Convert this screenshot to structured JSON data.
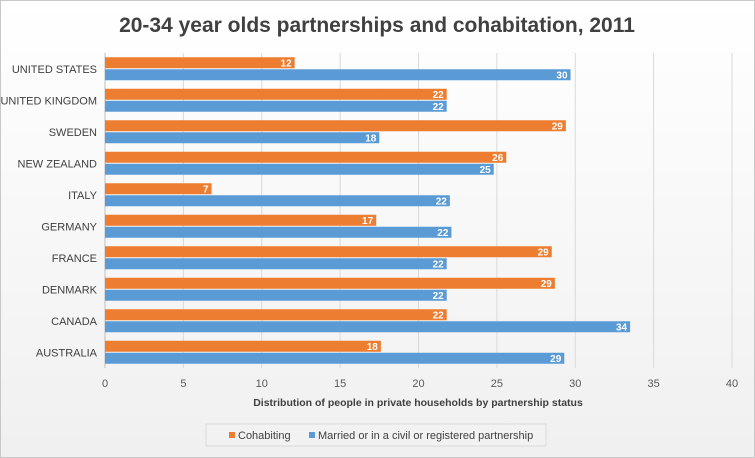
{
  "chart_data": {
    "type": "bar",
    "orientation": "horizontal",
    "title": "20-34 year olds partnerships and cohabitation, 2011",
    "xlabel": "Distribution of people in private households  by partnership  status",
    "ylabel": "",
    "xlim": [
      0,
      40
    ],
    "ticks": [
      0,
      5,
      10,
      15,
      20,
      25,
      30,
      35,
      40
    ],
    "grid": true,
    "legend_position": "bottom",
    "categories": [
      "UNITED STATES",
      "UNITED KINGDOM",
      "SWEDEN",
      "NEW ZEALAND",
      "ITALY",
      "GERMANY",
      "FRANCE",
      "DENMARK",
      "CANADA",
      "AUSTRALIA"
    ],
    "series": [
      {
        "name": "Cohabiting",
        "color": "#ED7D31",
        "values": [
          12.1,
          21.8,
          29.4,
          25.6,
          6.8,
          17.3,
          28.5,
          28.7,
          21.8,
          17.6
        ],
        "labels": [
          "12",
          "22",
          "29",
          "26",
          "7",
          "17",
          "29",
          "29",
          "22",
          "18"
        ]
      },
      {
        "name": "Married or in a civil or registered partnership",
        "color": "#5B9BD5",
        "values": [
          29.7,
          21.8,
          17.5,
          24.8,
          22.0,
          22.1,
          21.8,
          21.8,
          33.5,
          29.3
        ],
        "labels": [
          "30",
          "22",
          "18",
          "25",
          "22",
          "22",
          "22",
          "22",
          "34",
          "29"
        ]
      }
    ]
  }
}
